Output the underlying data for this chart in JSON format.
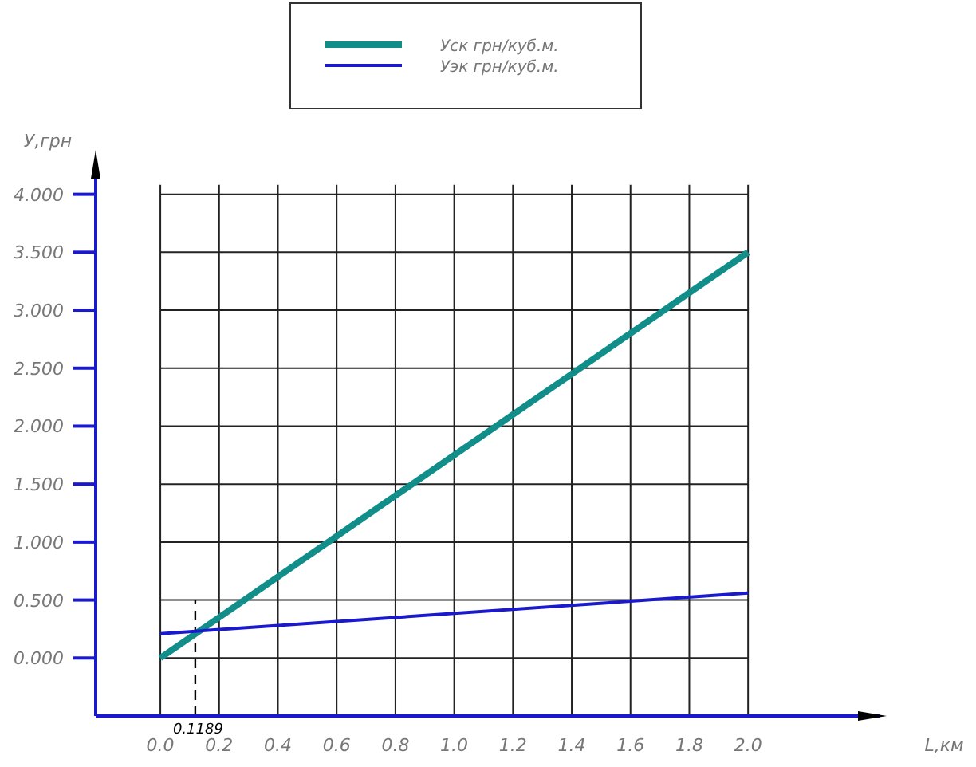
{
  "chart_data": {
    "type": "line",
    "xlabel": "L,км",
    "ylabel": "У,грн",
    "series": [
      {
        "name": "Уск грн/куб.м.",
        "color": "#128e8a",
        "values": [
          0,
          3.5
        ]
      },
      {
        "name": "Уэк грн/куб.м.",
        "color": "#1a1acc",
        "values": [
          0.21,
          0.56
        ]
      }
    ],
    "x": [
      0,
      2.0
    ],
    "xlim": [
      -0.22,
      2.45
    ],
    "ylim": [
      -0.5,
      4.3
    ],
    "xticks": [
      {
        "value": 0,
        "label": "0.0"
      },
      {
        "value": 0.2,
        "label": "0.2"
      },
      {
        "value": 0.4,
        "label": "0.4"
      },
      {
        "value": 0.6,
        "label": "0.6"
      },
      {
        "value": 0.8,
        "label": "0.8"
      },
      {
        "value": 1.0,
        "label": "1.0"
      },
      {
        "value": 1.2,
        "label": "1.2"
      },
      {
        "value": 1.4,
        "label": "1.4"
      },
      {
        "value": 1.6,
        "label": "1.6"
      },
      {
        "value": 1.8,
        "label": "1.8"
      },
      {
        "value": 2.0,
        "label": "2.0"
      }
    ],
    "yticks": [
      {
        "value": 0,
        "label": "0.000"
      },
      {
        "value": 0.5,
        "label": "0.500"
      },
      {
        "value": 1,
        "label": "1.000"
      },
      {
        "value": 1.5,
        "label": "1.500"
      },
      {
        "value": 2,
        "label": "2.000"
      },
      {
        "value": 2.5,
        "label": "2.500"
      },
      {
        "value": 3,
        "label": "3.000"
      },
      {
        "value": 3.5,
        "label": "3.500"
      },
      {
        "value": 4,
        "label": "4.000"
      }
    ],
    "ref_lines": [
      {
        "axis": "x",
        "value": 0.1189,
        "label": "0.1189",
        "line_style": "dashed",
        "color": "#000000"
      }
    ],
    "grid": true,
    "legend": "top",
    "marker": "none",
    "line_style": "solid"
  }
}
